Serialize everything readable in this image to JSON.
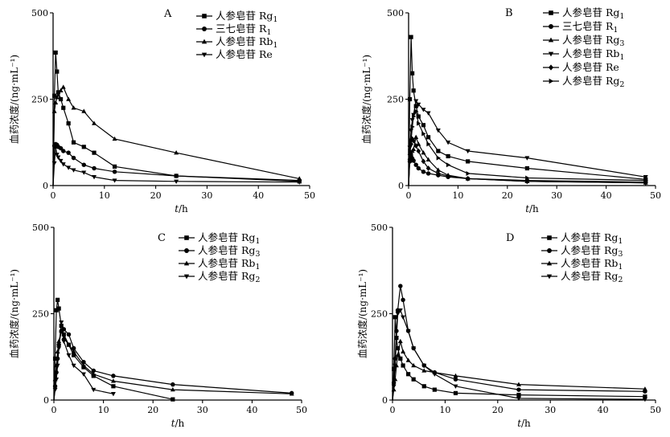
{
  "chart_data": [
    {
      "panel": "A",
      "type": "line",
      "xlabel": "t/h",
      "ylabel": "血药浓度/(ng·mL⁻¹)",
      "xlim": [
        0,
        50
      ],
      "ylim": [
        0,
        500
      ],
      "xticks": [
        0,
        10,
        20,
        30,
        40,
        50
      ],
      "yticks": [
        0,
        250,
        500
      ],
      "legend_position": "top-right",
      "series": [
        {
          "name": "人参皂苷 Rg1",
          "marker": "square",
          "x": [
            0,
            0.25,
            0.5,
            0.75,
            1,
            1.5,
            2,
            3,
            4,
            6,
            8,
            12,
            24,
            48
          ],
          "y": [
            0,
            260,
            385,
            330,
            270,
            250,
            225,
            180,
            125,
            112,
            95,
            55,
            28,
            12
          ]
        },
        {
          "name": "三七皂苷 R1",
          "marker": "circle",
          "x": [
            0,
            0.25,
            0.5,
            0.75,
            1,
            1.5,
            2,
            3,
            4,
            6,
            8,
            12,
            24,
            48
          ],
          "y": [
            0,
            115,
            120,
            118,
            112,
            108,
            100,
            95,
            80,
            60,
            50,
            40,
            28,
            15
          ]
        },
        {
          "name": "人参皂苷 Rb1",
          "marker": "triangle-up",
          "x": [
            0,
            0.25,
            0.5,
            0.75,
            1,
            1.5,
            2,
            3,
            4,
            6,
            8,
            12,
            24,
            48
          ],
          "y": [
            0,
            215,
            240,
            255,
            262,
            275,
            285,
            250,
            225,
            215,
            180,
            135,
            95,
            20
          ]
        },
        {
          "name": "人参皂苷 Re",
          "marker": "triangle-down",
          "x": [
            0,
            0.25,
            0.5,
            0.75,
            1,
            1.5,
            2,
            3,
            4,
            6,
            8,
            12,
            24,
            48
          ],
          "y": [
            0,
            65,
            110,
            90,
            82,
            72,
            62,
            52,
            45,
            38,
            25,
            15,
            12,
            10
          ]
        }
      ]
    },
    {
      "panel": "B",
      "type": "line",
      "xlabel": "t/h",
      "ylabel": "血药浓度/(ng·mL⁻¹)",
      "xlim": [
        0,
        50
      ],
      "ylim": [
        0,
        500
      ],
      "xticks": [
        0,
        10,
        20,
        30,
        40,
        50
      ],
      "yticks": [
        0,
        250,
        500
      ],
      "legend_position": "top-right",
      "series": [
        {
          "name": "人参皂苷 Rg1",
          "marker": "square",
          "x": [
            0,
            0.25,
            0.5,
            0.75,
            1,
            1.5,
            2,
            3,
            4,
            6,
            8,
            12,
            24,
            48
          ],
          "y": [
            0,
            250,
            430,
            325,
            275,
            230,
            200,
            175,
            140,
            100,
            85,
            70,
            50,
            18
          ]
        },
        {
          "name": "三七皂苷 R1",
          "marker": "circle",
          "x": [
            0,
            0.25,
            0.5,
            0.75,
            1,
            1.5,
            2,
            3,
            4,
            6,
            8,
            12,
            24,
            48
          ],
          "y": [
            0,
            70,
            85,
            78,
            72,
            60,
            50,
            40,
            35,
            30,
            25,
            20,
            15,
            10
          ]
        },
        {
          "name": "人参皂苷 Rg3",
          "marker": "triangle-up",
          "x": [
            0,
            0.25,
            0.5,
            0.75,
            1,
            1.5,
            2,
            3,
            4,
            6,
            8,
            12,
            24,
            48
          ],
          "y": [
            0,
            80,
            95,
            100,
            105,
            140,
            120,
            95,
            75,
            45,
            30,
            20,
            12,
            8
          ]
        },
        {
          "name": "人参皂苷 Rb1",
          "marker": "triangle-down",
          "x": [
            0,
            0.25,
            0.5,
            0.75,
            1,
            1.5,
            2,
            3,
            4,
            6,
            8,
            12,
            24,
            48
          ],
          "y": [
            0,
            110,
            160,
            190,
            205,
            245,
            235,
            220,
            210,
            160,
            125,
            100,
            80,
            25
          ]
        },
        {
          "name": "人参皂苷 Re",
          "marker": "diamond",
          "x": [
            0,
            0.25,
            0.5,
            0.75,
            1,
            1.5,
            2,
            3,
            4,
            6,
            8,
            12,
            24,
            48
          ],
          "y": [
            0,
            90,
            120,
            135,
            130,
            115,
            100,
            70,
            50,
            35,
            28,
            20,
            12,
            8
          ]
        },
        {
          "name": "人参皂苷 Rg2",
          "marker": "triangle-right",
          "x": [
            0,
            0.25,
            0.5,
            0.75,
            1,
            1.5,
            2,
            3,
            4,
            6,
            8,
            12,
            24,
            48
          ],
          "y": [
            0,
            100,
            130,
            170,
            200,
            215,
            180,
            150,
            120,
            80,
            60,
            35,
            22,
            15
          ]
        }
      ]
    },
    {
      "panel": "C",
      "type": "line",
      "xlabel": "t/h",
      "ylabel": "血药浓度/(ng·mL⁻¹)",
      "xlim": [
        0,
        50
      ],
      "ylim": [
        0,
        500
      ],
      "xticks": [
        0,
        10,
        20,
        30,
        40,
        50
      ],
      "yticks": [
        0,
        250,
        500
      ],
      "legend_position": "top-right",
      "series": [
        {
          "name": "人参皂苷 Rg1",
          "marker": "square",
          "x": [
            0,
            0.25,
            0.5,
            0.75,
            1,
            1.5,
            2,
            3,
            4,
            6,
            8,
            12,
            24
          ],
          "y": [
            0,
            120,
            260,
            290,
            265,
            215,
            190,
            160,
            130,
            95,
            70,
            40,
            2
          ]
        },
        {
          "name": "人参皂苷 Rg3",
          "marker": "circle",
          "x": [
            0,
            0.25,
            0.5,
            0.75,
            1,
            1.5,
            2,
            3,
            4,
            6,
            8,
            12,
            24,
            48
          ],
          "y": [
            0,
            40,
            80,
            120,
            160,
            200,
            205,
            190,
            150,
            110,
            85,
            70,
            45,
            20
          ]
        },
        {
          "name": "人参皂苷 Rb1",
          "marker": "triangle-up",
          "x": [
            0,
            0.25,
            0.5,
            0.75,
            1,
            1.5,
            2,
            3,
            4,
            6,
            8,
            12,
            24,
            48
          ],
          "y": [
            0,
            60,
            100,
            140,
            170,
            200,
            180,
            160,
            140,
            100,
            75,
            55,
            30,
            18
          ]
        },
        {
          "name": "人参皂苷 Rg2",
          "marker": "triangle-down",
          "x": [
            0,
            0.25,
            0.5,
            0.75,
            1,
            1.5,
            2,
            3,
            4,
            6,
            8,
            12
          ],
          "y": [
            0,
            30,
            60,
            100,
            150,
            225,
            170,
            130,
            100,
            75,
            30,
            18
          ]
        }
      ]
    },
    {
      "panel": "D",
      "type": "line",
      "xlabel": "t/h",
      "ylabel": "血药浓度/(ng·mL⁻¹)",
      "xlim": [
        0,
        50
      ],
      "ylim": [
        0,
        500
      ],
      "xticks": [
        0,
        10,
        20,
        30,
        40,
        50
      ],
      "yticks": [
        0,
        250,
        500
      ],
      "legend_position": "top-right",
      "series": [
        {
          "name": "人参皂苷 Rg1",
          "marker": "square",
          "x": [
            0,
            0.25,
            0.5,
            0.75,
            1,
            1.5,
            2,
            3,
            4,
            6,
            8,
            12,
            24,
            48
          ],
          "y": [
            0,
            90,
            240,
            180,
            150,
            120,
            100,
            75,
            60,
            40,
            30,
            20,
            15,
            10
          ]
        },
        {
          "name": "人参皂苷 Rg3",
          "marker": "circle",
          "x": [
            0,
            0.25,
            0.5,
            0.75,
            1,
            1.5,
            2,
            3,
            4,
            6,
            8,
            12,
            24,
            48
          ],
          "y": [
            0,
            50,
            120,
            200,
            260,
            330,
            290,
            200,
            150,
            100,
            80,
            60,
            30,
            25
          ]
        },
        {
          "name": "人参皂苷 Rb1",
          "marker": "triangle-up",
          "x": [
            0,
            0.25,
            0.5,
            0.75,
            1,
            1.5,
            2,
            3,
            4,
            6,
            8,
            12,
            24,
            48
          ],
          "y": [
            0,
            30,
            60,
            100,
            130,
            170,
            140,
            115,
            100,
            85,
            80,
            70,
            45,
            32
          ]
        },
        {
          "name": "人参皂苷 Rg2",
          "marker": "triangle-down",
          "x": [
            0,
            0.25,
            0.5,
            0.75,
            1,
            1.5,
            2,
            3,
            4,
            6,
            8,
            12,
            24,
            48
          ],
          "y": [
            0,
            40,
            100,
            180,
            250,
            260,
            240,
            200,
            150,
            100,
            75,
            40,
            5,
            2
          ]
        }
      ]
    }
  ]
}
